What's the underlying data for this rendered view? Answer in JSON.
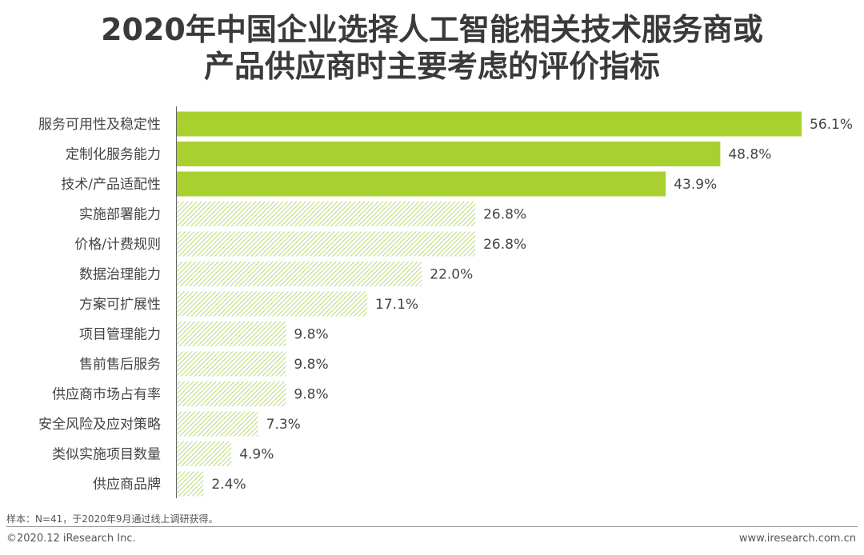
{
  "title_line1": "2020年中国企业选择人工智能相关技术服务商或",
  "title_line2": "产品供应商时主要考虑的评价指标",
  "note": "样本：N=41，于2020年9月通过线上调研获得。",
  "copyright": "©2020.12 iResearch Inc.",
  "website": "www.iresearch.com.cn",
  "colors": {
    "highlight": "#a8d130",
    "hatch_line": "#bcd97a",
    "hatch_bg": "#ffffff"
  },
  "chart_data": {
    "type": "bar",
    "orientation": "horizontal",
    "title": "2020年中国企业选择人工智能相关技术服务商或产品供应商时主要考虑的评价指标",
    "categories": [
      "服务可用性及稳定性",
      "定制化服务能力",
      "技术/产品适配性",
      "实施部署能力",
      "价格/计费规则",
      "数据治理能力",
      "方案可扩展性",
      "项目管理能力",
      "售前售后服务",
      "供应商市场占有率",
      "安全风险及应对策略",
      "类似实施项目数量",
      "供应商品牌"
    ],
    "values": [
      56.1,
      48.8,
      43.9,
      26.8,
      26.8,
      22.0,
      17.1,
      9.8,
      9.8,
      9.8,
      7.3,
      4.9,
      2.4
    ],
    "value_labels": [
      "56.1%",
      "48.8%",
      "43.9%",
      "26.8%",
      "26.8%",
      "22.0%",
      "17.1%",
      "9.8%",
      "9.8%",
      "9.8%",
      "7.3%",
      "4.9%",
      "2.4%"
    ],
    "highlight_top": 3,
    "unit": "%"
  }
}
